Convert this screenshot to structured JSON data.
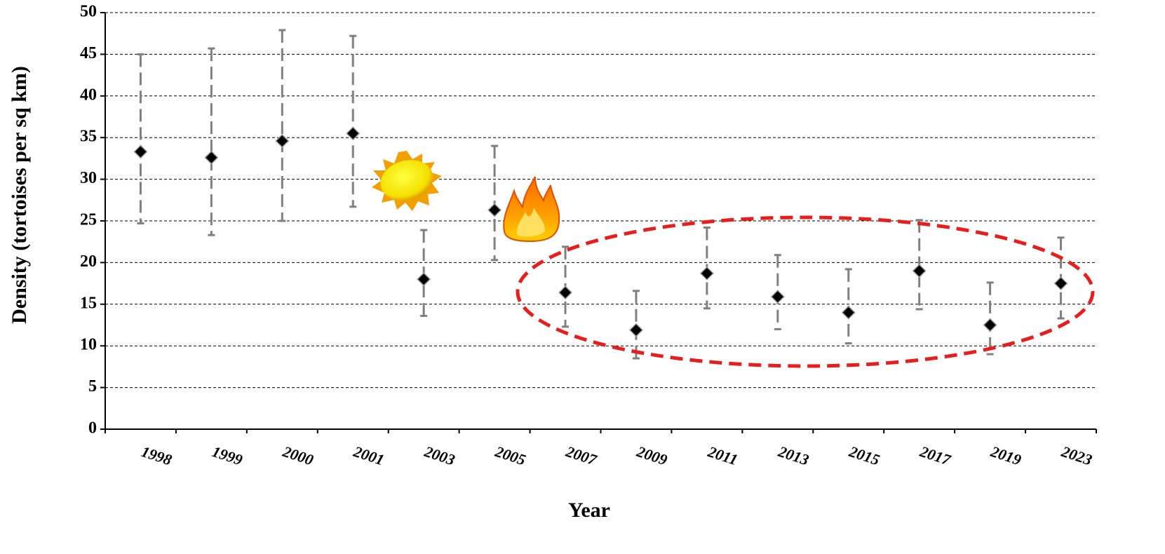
{
  "chart_data": {
    "type": "errorbar",
    "x_label": "Year",
    "y_label": "Density (tortoises per sq km)",
    "categories": [
      "1998",
      "1999",
      "2000",
      "2001",
      "2003",
      "2005",
      "2007",
      "2009",
      "2011",
      "2013",
      "2015",
      "2017",
      "2019",
      "2023"
    ],
    "values": [
      33.3,
      32.6,
      34.6,
      35.5,
      18.0,
      26.3,
      16.4,
      11.9,
      18.7,
      15.9,
      14.0,
      19.0,
      12.5,
      17.5
    ],
    "error_upper": [
      45.0,
      45.7,
      47.9,
      47.2,
      23.9,
      34.0,
      21.9,
      16.6,
      24.2,
      20.9,
      19.2,
      25.1,
      17.6,
      23.0
    ],
    "error_lower": [
      24.7,
      23.3,
      25.0,
      26.7,
      13.6,
      20.3,
      12.3,
      8.5,
      14.5,
      12.0,
      10.3,
      14.4,
      9.0,
      13.3
    ],
    "color": "#000000",
    "error_color": "#808080",
    "ylim": [
      0,
      50
    ],
    "yticks": [
      0,
      5,
      10,
      15,
      20,
      25,
      30,
      35,
      40,
      45,
      50
    ],
    "grid": true
  }
}
